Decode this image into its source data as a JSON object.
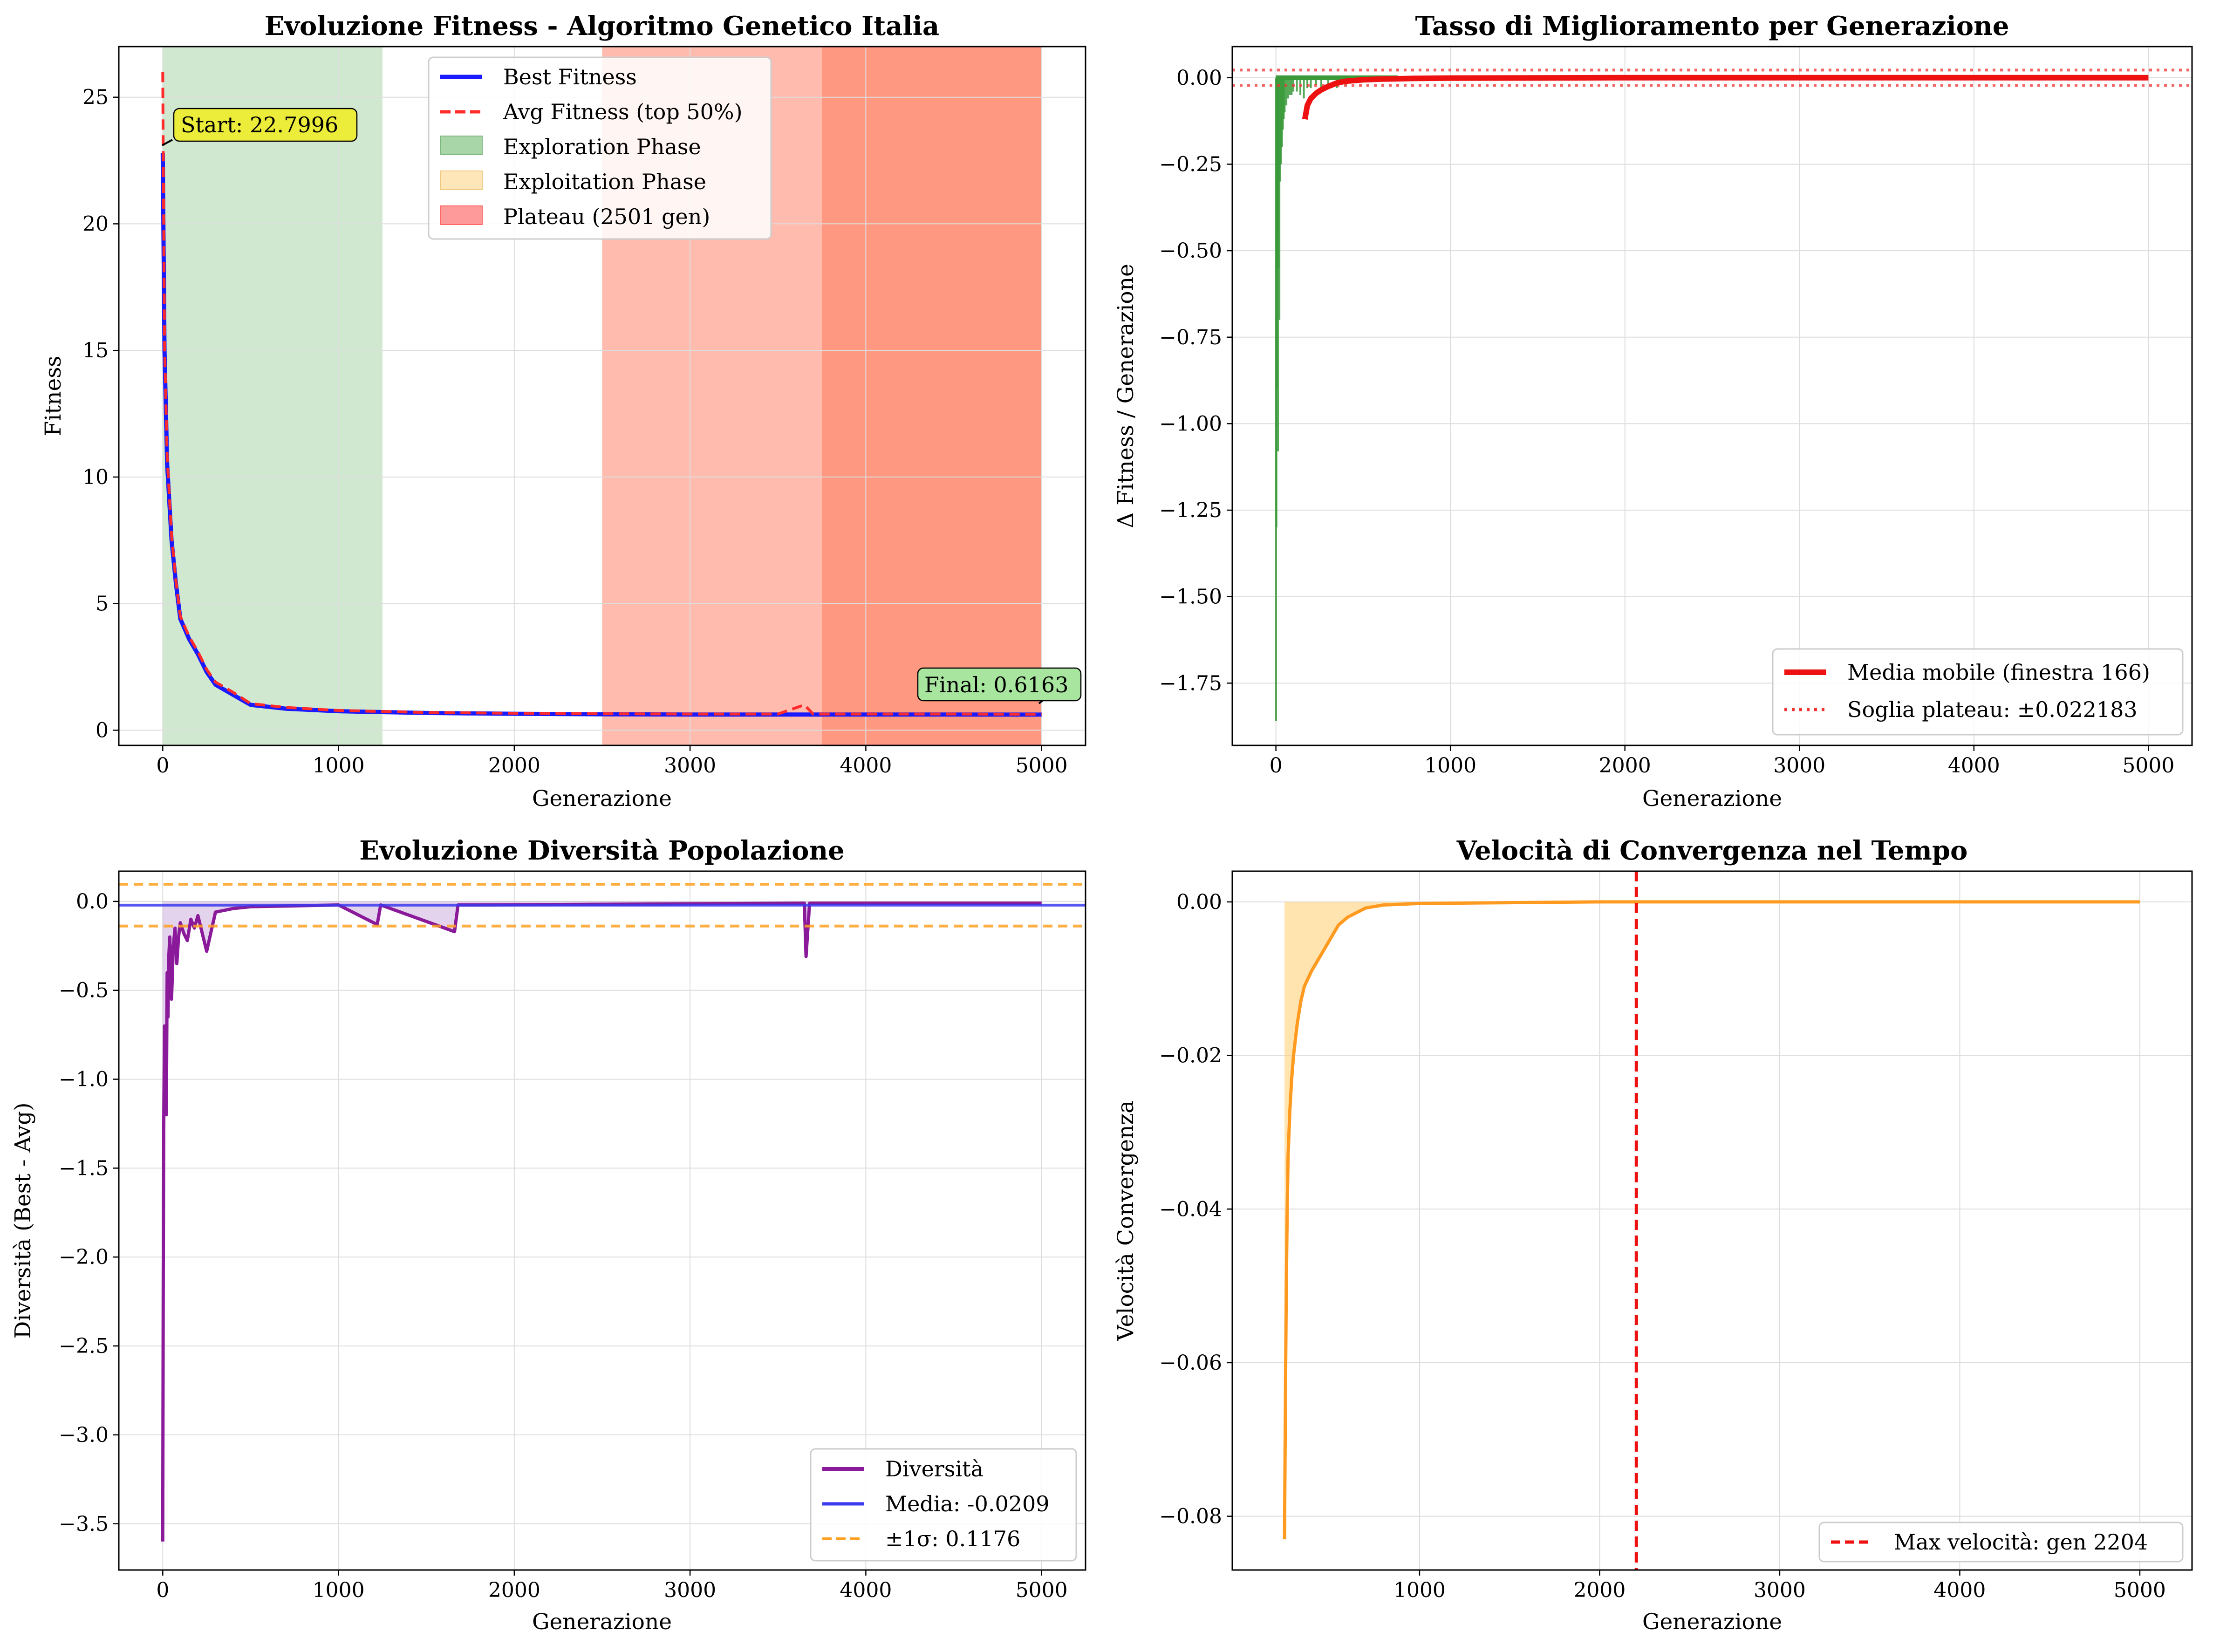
{
  "colors": {
    "best": "#1a1aff",
    "avg": "#ff2b2b",
    "exploration": "#a9d6a9",
    "exploitation": "#ffe0a0",
    "plateau": "#ff8888",
    "plateau_dark": "#ff8f70",
    "improve": "#3a9a3a",
    "moving_avg": "#ee1111",
    "diversity": "#8a1a9a",
    "mean_line": "#3a3aee",
    "sigma": "#ffa020",
    "velocity": "#ff9a20",
    "grid": "#dddddd"
  },
  "chart_data": [
    {
      "type": "line",
      "title": "Evoluzione Fitness - Algoritmo Genetico Italia",
      "xlabel": "Generazione",
      "ylabel": "Fitness",
      "xlim": [
        -250,
        5250
      ],
      "ylim": [
        -0.6,
        27
      ],
      "xticks": [
        0,
        1000,
        2000,
        3000,
        4000,
        5000
      ],
      "yticks": [
        0,
        5,
        10,
        15,
        20,
        25
      ],
      "grid": true,
      "legend_position": "top-center",
      "legend": [
        "Best Fitness",
        "Avg Fitness (top 50%)",
        "Exploration Phase",
        "Exploitation Phase",
        "Plateau (2501 gen)"
      ],
      "phases": [
        {
          "name": "Exploration Phase",
          "x": [
            0,
            1250
          ]
        },
        {
          "name": "Exploitation Phase",
          "x": [
            2500,
            3750
          ]
        },
        {
          "name": "Plateau (2501 gen)",
          "x": [
            2500,
            5000
          ]
        }
      ],
      "series": [
        {
          "name": "Best Fitness",
          "x": [
            0,
            10,
            25,
            50,
            75,
            100,
            150,
            200,
            250,
            300,
            400,
            500,
            700,
            1000,
            1500,
            2000,
            2500,
            3000,
            3500,
            4000,
            4500,
            5000
          ],
          "values": [
            22.8,
            15.0,
            10.5,
            7.5,
            5.8,
            4.4,
            3.6,
            3.0,
            2.3,
            1.8,
            1.4,
            1.0,
            0.85,
            0.75,
            0.68,
            0.65,
            0.63,
            0.62,
            0.62,
            0.62,
            0.62,
            0.6163
          ]
        },
        {
          "name": "Avg Fitness (top 50%)",
          "x": [
            0,
            2,
            10,
            25,
            50,
            75,
            100,
            150,
            200,
            250,
            300,
            400,
            500,
            700,
            1000,
            1500,
            2000,
            2500,
            3000,
            3500,
            3650,
            3700,
            4000,
            4500,
            5000
          ],
          "values": [
            26.0,
            23.5,
            15.3,
            10.8,
            7.7,
            5.9,
            4.5,
            3.7,
            3.1,
            2.4,
            1.9,
            1.5,
            1.05,
            0.9,
            0.78,
            0.7,
            0.67,
            0.65,
            0.64,
            0.64,
            1.0,
            0.64,
            0.64,
            0.64,
            0.63
          ]
        }
      ],
      "annotations": [
        {
          "text": "Start: 22.7996",
          "x": 0,
          "y": 22.7996
        },
        {
          "text": "Final: 0.6163",
          "x": 5000,
          "y": 0.6163
        }
      ]
    },
    {
      "type": "bar",
      "title": "Tasso di Miglioramento per Generazione",
      "xlabel": "Generazione",
      "ylabel": "Δ Fitness / Generazione",
      "xlim": [
        -250,
        5250
      ],
      "ylim": [
        -1.93,
        0.09
      ],
      "xticks": [
        0,
        1000,
        2000,
        3000,
        4000,
        5000
      ],
      "yticks": [
        0.0,
        -0.25,
        -0.5,
        -0.75,
        -1.0,
        -1.25,
        -1.5,
        -1.75
      ],
      "grid": true,
      "legend_position": "bottom-right",
      "legend": [
        "Media mobile (finestra 166)",
        "Soglia plateau: ±0.022183"
      ],
      "improvements": {
        "x": [
          1,
          3,
          5,
          8,
          12,
          15,
          20,
          25,
          30,
          35,
          40,
          45,
          50,
          60,
          70,
          80,
          90,
          100,
          120,
          140,
          160,
          180,
          200,
          230,
          260,
          300,
          350,
          400,
          450,
          500,
          600,
          700
        ],
        "values": [
          -1.86,
          -1.3,
          -0.9,
          -0.45,
          -1.08,
          -0.55,
          -0.7,
          -0.3,
          -0.25,
          -0.2,
          -0.15,
          -0.12,
          -0.1,
          -0.08,
          -0.06,
          -0.05,
          -0.05,
          -0.04,
          -0.04,
          -0.05,
          -0.06,
          -0.03,
          -0.03,
          -0.02,
          -0.04,
          -0.02,
          -0.03,
          -0.02,
          -0.01,
          -0.01,
          -0.01,
          -0.005
        ]
      },
      "moving_average": {
        "x": [
          166,
          180,
          200,
          230,
          260,
          300,
          350,
          400,
          500,
          600,
          800,
          1000,
          2000,
          3000,
          4000,
          5000
        ],
        "values": [
          -0.12,
          -0.08,
          -0.06,
          -0.045,
          -0.035,
          -0.025,
          -0.015,
          -0.01,
          -0.006,
          -0.004,
          -0.002,
          -0.001,
          0,
          0,
          0,
          0
        ]
      },
      "plateau_threshold": 0.022183
    },
    {
      "type": "line",
      "title": "Evoluzione Diversità Popolazione",
      "xlabel": "Generazione",
      "ylabel": "Diversità (Best - Avg)",
      "xlim": [
        -250,
        5250
      ],
      "ylim": [
        -3.76,
        0.17
      ],
      "xticks": [
        0,
        1000,
        2000,
        3000,
        4000,
        5000
      ],
      "yticks": [
        0.0,
        -0.5,
        -1.0,
        -1.5,
        -2.0,
        -2.5,
        -3.0,
        -3.5
      ],
      "grid": true,
      "legend_position": "bottom-right",
      "legend": [
        "Diversità",
        "Media: -0.0209",
        "±1σ: 0.1176"
      ],
      "diversity": {
        "x": [
          0,
          3,
          6,
          10,
          15,
          20,
          25,
          30,
          35,
          40,
          50,
          60,
          70,
          80,
          90,
          100,
          120,
          140,
          160,
          180,
          200,
          250,
          300,
          350,
          400,
          500,
          1000,
          1220,
          1240,
          1660,
          1680,
          1800,
          3650,
          3660,
          3680,
          4000,
          5000
        ],
        "values": [
          -3.6,
          -2.1,
          -1.2,
          -0.7,
          -0.85,
          -1.2,
          -0.4,
          -0.65,
          -0.3,
          -0.2,
          -0.55,
          -0.25,
          -0.15,
          -0.35,
          -0.2,
          -0.12,
          -0.18,
          -0.22,
          -0.1,
          -0.15,
          -0.08,
          -0.28,
          -0.06,
          -0.05,
          -0.04,
          -0.03,
          -0.02,
          -0.13,
          -0.02,
          -0.17,
          -0.02,
          -0.02,
          -0.01,
          -0.31,
          -0.01,
          -0.01,
          -0.01
        ]
      },
      "mean": -0.0209,
      "sigma": 0.1176
    },
    {
      "type": "line",
      "title": "Velocità di Convergenza nel Tempo",
      "xlabel": "Generazione",
      "ylabel": "Velocità Convergenza",
      "xlim": [
        -40,
        5290
      ],
      "ylim": [
        -0.087,
        0.004
      ],
      "xticks": [
        1000,
        2000,
        3000,
        4000,
        5000
      ],
      "yticks": [
        0.0,
        -0.02,
        -0.04,
        -0.06,
        -0.08
      ],
      "grid": true,
      "legend_position": "bottom-right",
      "legend": [
        "Max velocità: gen 2204"
      ],
      "velocity": {
        "x": [
          250,
          255,
          260,
          265,
          270,
          280,
          290,
          300,
          320,
          340,
          360,
          400,
          450,
          500,
          550,
          600,
          700,
          800,
          1000,
          1500,
          2000,
          3000,
          4000,
          5000
        ],
        "values": [
          -0.083,
          -0.065,
          -0.05,
          -0.04,
          -0.033,
          -0.027,
          -0.023,
          -0.02,
          -0.016,
          -0.013,
          -0.011,
          -0.009,
          -0.007,
          -0.005,
          -0.003,
          -0.002,
          -0.0008,
          -0.0004,
          -0.0002,
          -0.0001,
          0,
          0,
          0,
          0
        ]
      },
      "max_velocity_gen": 2204
    }
  ]
}
